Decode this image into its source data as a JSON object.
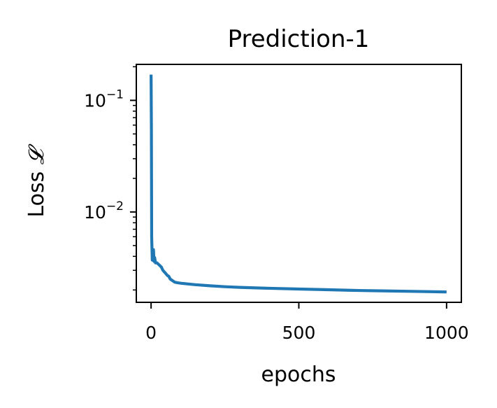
{
  "chart_data": {
    "type": "line",
    "title": "Prediction-1",
    "xlabel": "epochs",
    "ylabel": "Loss",
    "ylabel_symbol": "𝓛",
    "yscale": "log",
    "xlim": [
      -50,
      1050
    ],
    "ylim": [
      0.00155,
      0.21
    ],
    "x_ticks": [
      {
        "value": 0,
        "label": "0"
      },
      {
        "value": 500,
        "label": "500"
      },
      {
        "value": 1000,
        "label": "1000"
      }
    ],
    "y_major_ticks": [
      {
        "value": 0.1,
        "base": "10",
        "exp": "−1"
      },
      {
        "value": 0.01,
        "base": "10",
        "exp": "−2"
      }
    ],
    "grid": false,
    "series": [
      {
        "color": "#1f77b4",
        "x": [
          0,
          1,
          2,
          4,
          6,
          8,
          10,
          12,
          15,
          20,
          25,
          30,
          35,
          40,
          45,
          50,
          55,
          60,
          65,
          70,
          75,
          80,
          90,
          100,
          120,
          150,
          200,
          250,
          300,
          400,
          500,
          600,
          700,
          800,
          900,
          1000
        ],
        "y": [
          0.17,
          0.06,
          0.006,
          0.0037,
          0.004,
          0.0046,
          0.0036,
          0.0039,
          0.0035,
          0.0035,
          0.0034,
          0.0033,
          0.0032,
          0.003,
          0.0029,
          0.0028,
          0.0027,
          0.00265,
          0.0025,
          0.00245,
          0.0024,
          0.00235,
          0.00232,
          0.0023,
          0.00227,
          0.00223,
          0.00218,
          0.00214,
          0.00211,
          0.00207,
          0.00204,
          0.00201,
          0.00198,
          0.00196,
          0.00194,
          0.00192
        ]
      }
    ]
  }
}
